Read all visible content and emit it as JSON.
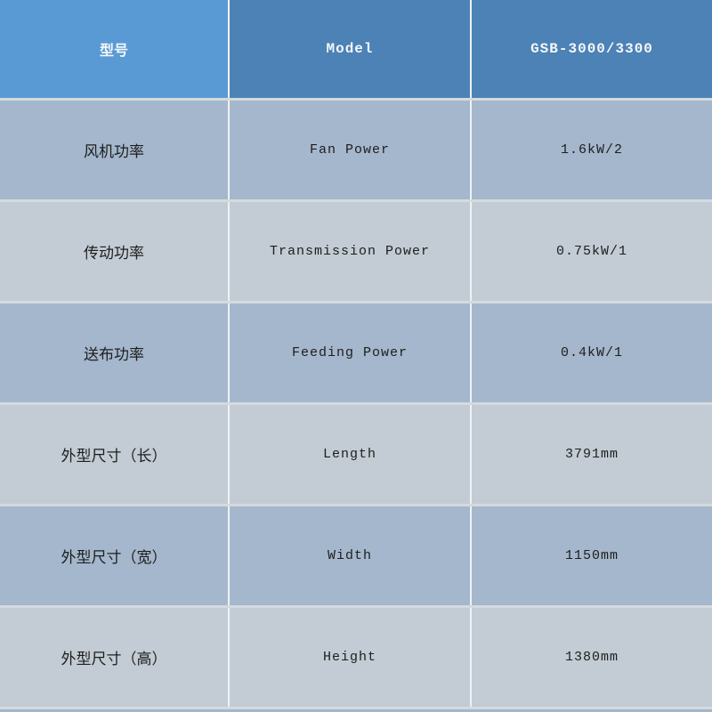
{
  "table": {
    "header": {
      "cn": "型号",
      "en": "Model",
      "value": "GSB-3000/3300"
    },
    "rows": [
      {
        "cn": "风机功率",
        "en": "Fan Power",
        "value": "1.6kW/2"
      },
      {
        "cn": "传动功率",
        "en": "Transmission Power",
        "value": "0.75kW/1"
      },
      {
        "cn": "送布功率",
        "en": "Feeding Power",
        "value": "0.4kW/1"
      },
      {
        "cn": "外型尺寸（长）",
        "en": "Length",
        "value": "3791mm"
      },
      {
        "cn": "外型尺寸（宽）",
        "en": "Width",
        "value": "1150mm"
      },
      {
        "cn": "外型尺寸（高）",
        "en": "Height",
        "value": "1380mm"
      }
    ],
    "colors": {
      "header_first_bg": "#5a9ad4",
      "header_bg": "#4c82b6",
      "row_dark_bg": "#a4b7cc",
      "row_light_bg": "#c3ccd4",
      "header_text": "#f4f7fa",
      "cell_text": "#1e1e1e",
      "v_divider": "#eef2f5",
      "h_divider": "#d4dade"
    }
  }
}
